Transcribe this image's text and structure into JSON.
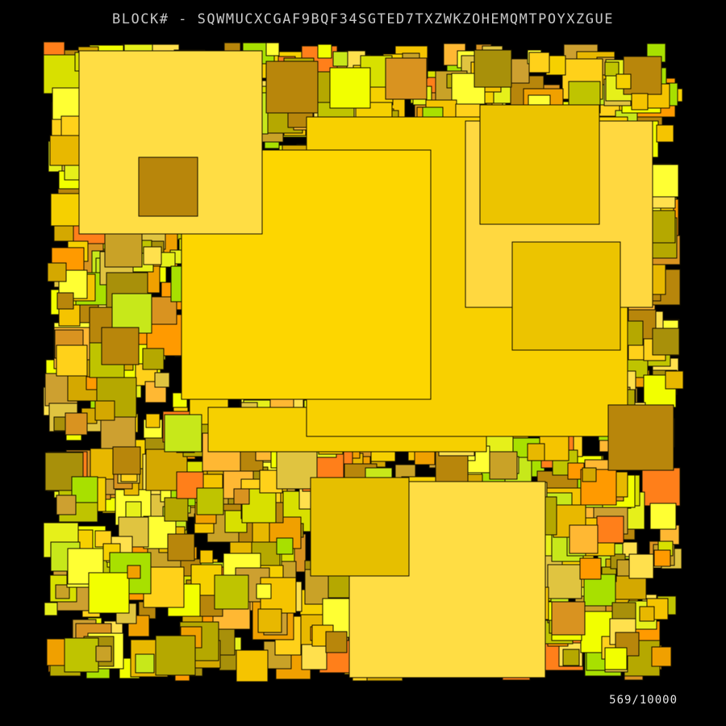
{
  "header": {
    "title": "BLOCK# - SQWMUCXCGAF9BQF34SGTED7TXZWKZOHEMQMTPOYXZGUE"
  },
  "footer": {
    "counter": "569/10000"
  },
  "palette": {
    "background": "#000000",
    "outline": "#1a1400",
    "title_text": "#c8c8c8",
    "counter_text": "#e6e6e6",
    "fills": [
      "#f5c400",
      "#ffd11a",
      "#ffe04d",
      "#e8b800",
      "#d4a800",
      "#f0a000",
      "#ff9a00",
      "#ff7f1a",
      "#d99320",
      "#b8860b",
      "#c9a227",
      "#a8900a",
      "#bfc400",
      "#d8e000",
      "#e6f01a",
      "#c7e81a",
      "#a8e000",
      "#ffff33",
      "#f2ff00",
      "#b5a800",
      "#e0c440",
      "#cda030",
      "#ffb833",
      "#f6d000"
    ]
  }
}
